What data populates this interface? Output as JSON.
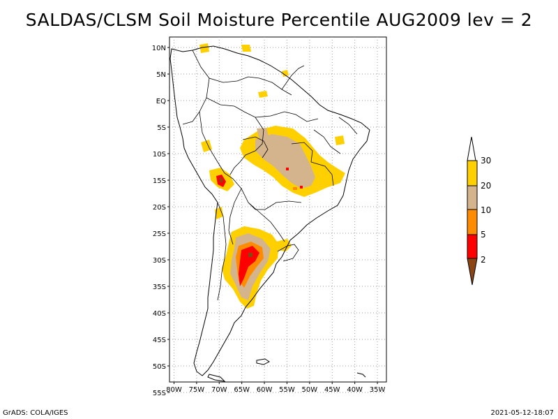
{
  "title": "SALDAS/CLSM Soil Moisture Percentile AUG2009 lev = 2",
  "footer": {
    "left": "GrADS: COLA/IGES",
    "right": "2021-05-12-18:07"
  },
  "map": {
    "region": "South America",
    "lat_labels": [
      "10N",
      "5N",
      "EQ",
      "5S",
      "10S",
      "15S",
      "20S",
      "25S",
      "30S",
      "35S",
      "40S",
      "45S",
      "50S",
      "55S"
    ],
    "lon_labels": [
      "80W",
      "75W",
      "70W",
      "65W",
      "60W",
      "55W",
      "50W",
      "45W",
      "40W",
      "35W"
    ],
    "lat_range": [
      10,
      -55
    ],
    "lon_range": [
      -81,
      -33
    ]
  },
  "legend": {
    "labels": [
      "30",
      "20",
      "10",
      "5",
      "2"
    ],
    "colors": {
      "above_30": "#ffffff",
      "20_30": "#ffd000",
      "10_20": "#d4b48c",
      "5_10": "#ff8c00",
      "2_5": "#ff0000",
      "below_2": "#8b4513"
    }
  }
}
